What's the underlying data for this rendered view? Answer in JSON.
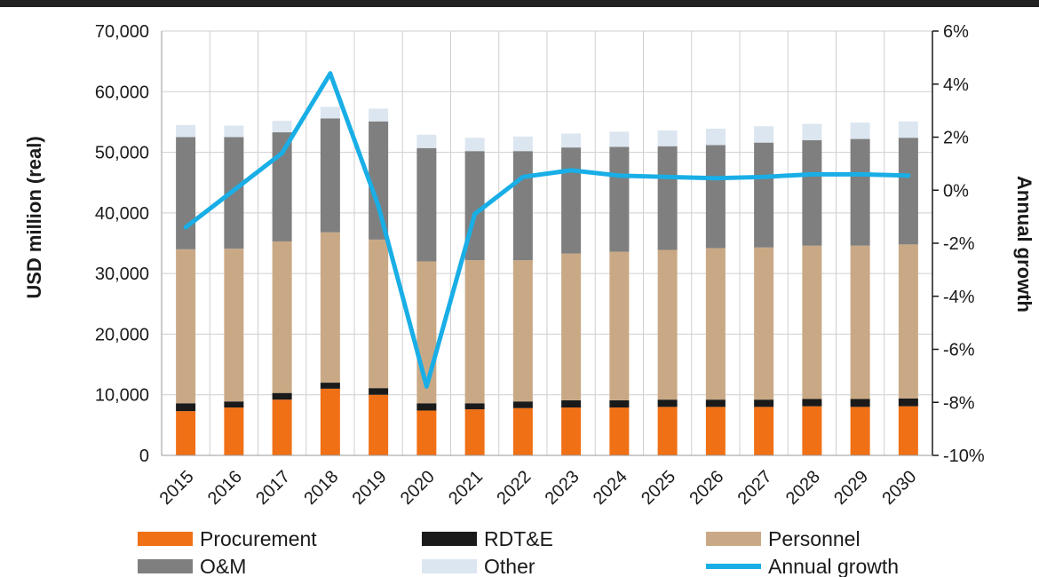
{
  "chart_data": {
    "type": "bar",
    "stacked": true,
    "title": "",
    "xlabel": "",
    "ylabel": "USD million (real)",
    "y2label": "Annual growth",
    "ylim": [
      0,
      70000
    ],
    "y2lim": [
      -10,
      6
    ],
    "yticks": [
      "0",
      "10,000",
      "20,000",
      "30,000",
      "40,000",
      "50,000",
      "60,000",
      "70,000"
    ],
    "y2ticks": [
      "-10%",
      "-8%",
      "-6%",
      "-4%",
      "-2%",
      "0%",
      "2%",
      "4%",
      "6%"
    ],
    "grid": true,
    "legend": "bottom",
    "categories": [
      "2015",
      "2016",
      "2017",
      "2018",
      "2019",
      "2020",
      "2021",
      "2022",
      "2023",
      "2024",
      "2025",
      "2026",
      "2027",
      "2028",
      "2029",
      "2030"
    ],
    "series": [
      {
        "name": "Procurement",
        "color": "#f07016",
        "values": [
          7300,
          7900,
          9200,
          11000,
          10000,
          7400,
          7600,
          7800,
          7900,
          7900,
          8000,
          8000,
          8000,
          8100,
          8000,
          8100
        ]
      },
      {
        "name": "RDT&E",
        "color": "#1a1a1a",
        "values": [
          1300,
          1000,
          1100,
          1000,
          1100,
          1200,
          1000,
          1100,
          1200,
          1200,
          1200,
          1200,
          1200,
          1200,
          1300,
          1300
        ]
      },
      {
        "name": "Personnel",
        "color": "#c9a985",
        "values": [
          25400,
          25200,
          25000,
          24800,
          24500,
          23400,
          23600,
          23300,
          24200,
          24500,
          24700,
          25000,
          25100,
          25300,
          25300,
          25400
        ]
      },
      {
        "name": "O&M",
        "color": "#7f7f7f",
        "values": [
          18500,
          18400,
          18000,
          18800,
          19500,
          18700,
          18000,
          18000,
          17500,
          17300,
          17100,
          17000,
          17300,
          17400,
          17600,
          17600
        ]
      },
      {
        "name": "Other",
        "color": "#dce6f0",
        "values": [
          2000,
          1900,
          1900,
          1900,
          2100,
          2200,
          2200,
          2400,
          2300,
          2500,
          2600,
          2700,
          2700,
          2700,
          2700,
          2700
        ]
      }
    ],
    "line_series": {
      "name": "Annual growth",
      "color": "#19aee6",
      "axis": "right",
      "values": [
        -1.4,
        0.0,
        1.4,
        4.4,
        -0.6,
        -7.4,
        -0.9,
        0.5,
        0.75,
        0.55,
        0.5,
        0.45,
        0.5,
        0.6,
        0.6,
        0.55
      ]
    }
  }
}
